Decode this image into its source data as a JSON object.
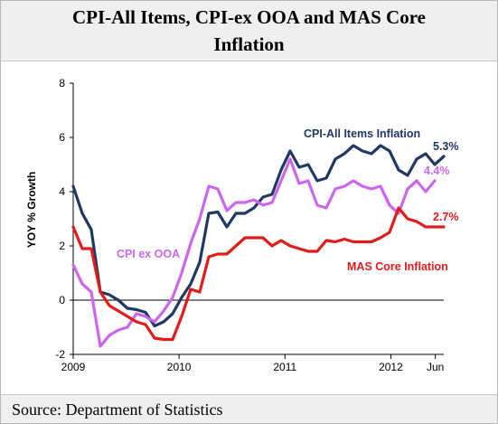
{
  "title": "CPI-All Items, CPI-ex OOA and MAS Core Inflation",
  "source": "Source: Department of Statistics",
  "chart_data": {
    "type": "line",
    "ylabel": "YOY % Growth",
    "ylim": [
      -2,
      8
    ],
    "yticks": [
      -2,
      0,
      2,
      4,
      6,
      8
    ],
    "x_start": 2009.0,
    "x_end": 2012.5,
    "x_ticks": [
      {
        "label": "2009",
        "x": 2009.0
      },
      {
        "label": "2010",
        "x": 2010.0
      },
      {
        "label": "2011",
        "x": 2011.0
      },
      {
        "label": "2012",
        "x": 2012.0
      },
      {
        "label": "Jun",
        "x": 2012.42
      }
    ],
    "grid": false,
    "zero_line": true,
    "series": [
      {
        "name": "CPI-All Items Inflation",
        "color": "#1f3864",
        "end_label": "5.3%",
        "values": [
          4.2,
          3.2,
          2.6,
          0.3,
          0.2,
          0.0,
          -0.3,
          -0.35,
          -0.45,
          -0.95,
          -0.8,
          -0.5,
          0.1,
          0.6,
          1.4,
          3.2,
          3.25,
          2.7,
          3.2,
          3.2,
          3.4,
          3.8,
          3.9,
          4.8,
          5.5,
          4.9,
          5.0,
          4.4,
          4.5,
          5.2,
          5.4,
          5.7,
          5.5,
          5.4,
          5.7,
          5.5,
          4.8,
          4.6,
          5.2,
          5.4,
          5.0,
          5.3
        ]
      },
      {
        "name": "CPI ex OOA",
        "color": "#cc66ee",
        "end_label": "4.4%",
        "values": [
          1.3,
          0.6,
          0.3,
          -1.7,
          -1.3,
          -1.1,
          -1.0,
          -0.5,
          -0.6,
          -0.8,
          -0.4,
          0.1,
          1.0,
          2.1,
          3.0,
          4.2,
          4.1,
          3.3,
          3.6,
          3.6,
          3.7,
          3.5,
          3.6,
          4.4,
          5.2,
          4.3,
          4.4,
          3.5,
          3.4,
          4.1,
          4.2,
          4.4,
          4.2,
          4.1,
          4.2,
          3.5,
          3.2,
          4.1,
          4.4,
          4.0,
          4.4
        ]
      },
      {
        "name": "MAS Core Inflation",
        "color": "#e31b1b",
        "end_label": "2.7%",
        "values": [
          2.7,
          1.9,
          1.9,
          0.3,
          -0.2,
          -0.4,
          -0.6,
          -0.8,
          -0.9,
          -1.4,
          -1.45,
          -1.45,
          -0.6,
          0.4,
          0.3,
          1.6,
          1.7,
          1.7,
          2.0,
          2.3,
          2.3,
          2.3,
          2.0,
          2.2,
          2.0,
          1.9,
          1.8,
          1.8,
          2.2,
          2.15,
          2.25,
          2.15,
          2.15,
          2.15,
          2.3,
          2.5,
          3.4,
          3.0,
          2.9,
          2.7,
          2.7,
          2.7
        ]
      }
    ],
    "annotations": [
      {
        "text": "CPI-All Items Inflation",
        "series": 0
      },
      {
        "text": "CPI ex OOA",
        "series": 1
      },
      {
        "text": "MAS Core Inflation",
        "series": 2
      }
    ]
  }
}
